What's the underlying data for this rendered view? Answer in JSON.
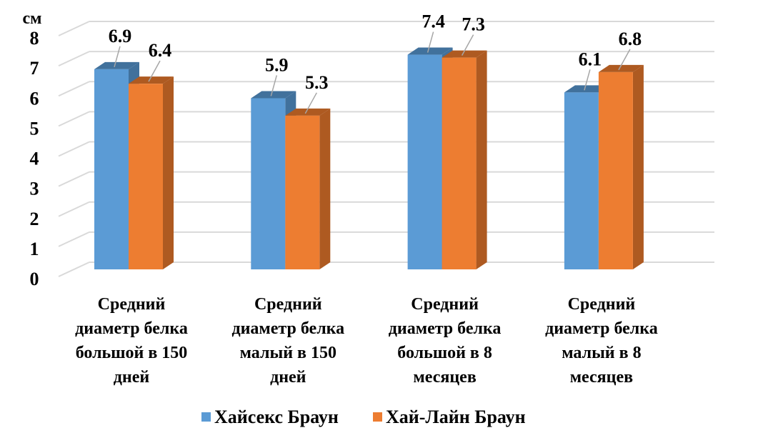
{
  "chart_data": {
    "type": "bar",
    "title": "",
    "ylabel": "см",
    "xlabel": "",
    "ylim": [
      0,
      8
    ],
    "yticks": [
      "0",
      "1",
      "2",
      "3",
      "4",
      "5",
      "6",
      "7",
      "8"
    ],
    "grid": true,
    "legend_position": "bottom",
    "categories": [
      [
        "Средний",
        "диаметр белка",
        "большой в 150",
        "дней"
      ],
      [
        "Средний",
        "диаметр белка",
        "малый в 150",
        "дней"
      ],
      [
        "Средний",
        "диаметр белка",
        "большой в 8",
        "месяцев"
      ],
      [
        "Средний",
        "диаметр белка",
        "малый в 8",
        "месяцев"
      ]
    ],
    "series": [
      {
        "name": "Хайсекс Браун",
        "color": "#5b9bd5",
        "side": "#41719c",
        "values": [
          6.9,
          5.9,
          7.4,
          6.1
        ],
        "labels": [
          "6.9",
          "5.9",
          "7.4",
          "6.1"
        ]
      },
      {
        "name": "Хай-Лайн Браун",
        "color": "#ed7d31",
        "side": "#ae5a21",
        "values": [
          6.4,
          5.3,
          7.3,
          6.8
        ],
        "labels": [
          "6.4",
          "5.3",
          "7.3",
          "6.8"
        ]
      }
    ]
  }
}
